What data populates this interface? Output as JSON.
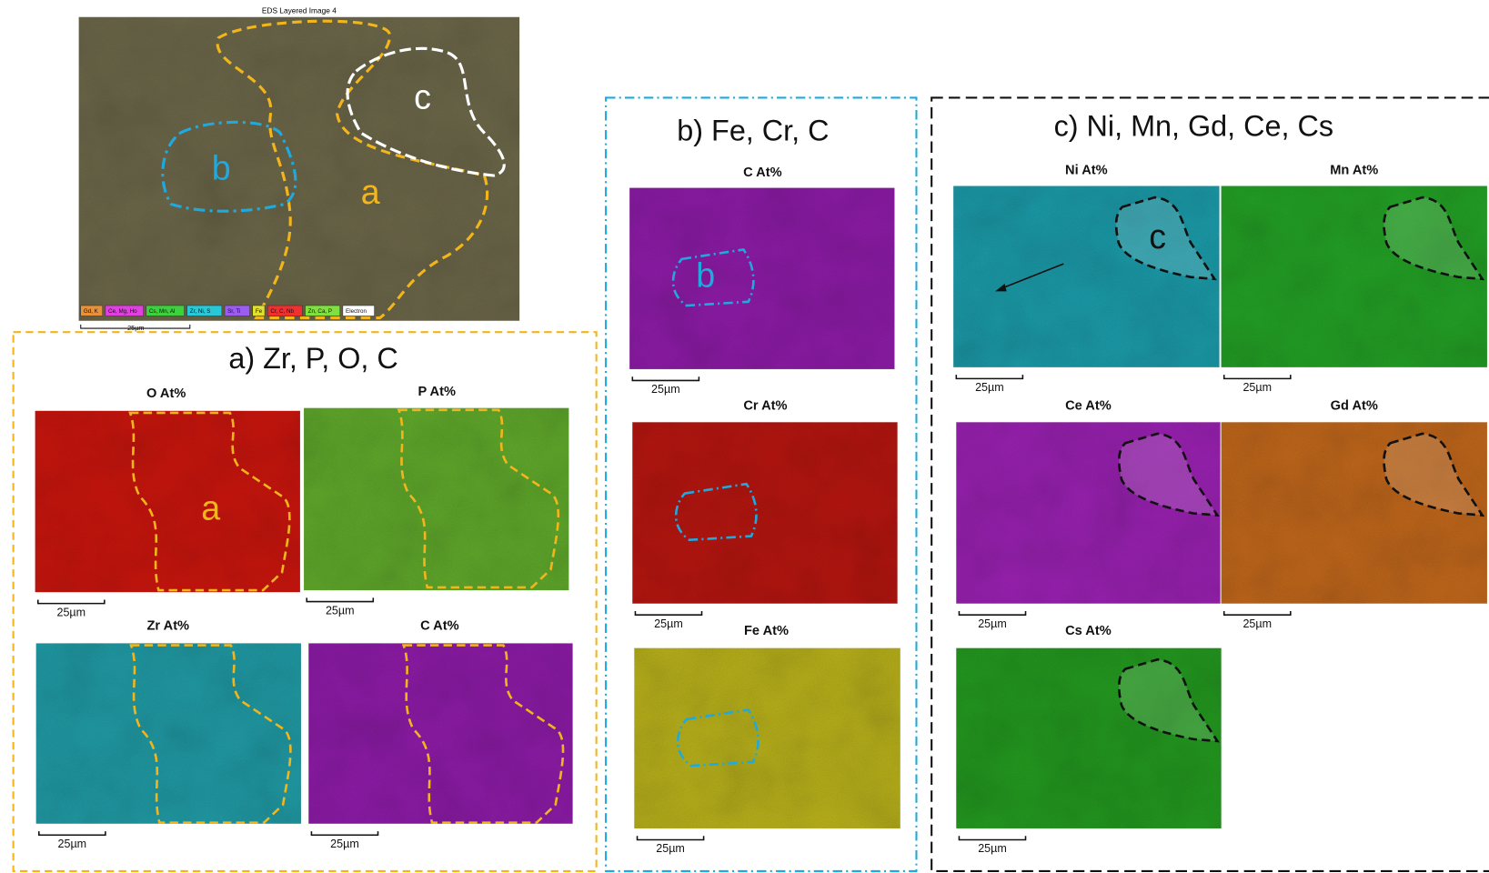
{
  "eds_image": {
    "title": "EDS Layered Image 4",
    "region_labels": [
      "a",
      "b",
      "c"
    ],
    "legend": [
      "Gd, K",
      "Ce, Mg, Ho",
      "Cs, Mn, Al",
      "Zr, Ni, S",
      "Sr, Ti",
      "Fe",
      "Cr, C, Nb",
      "Zn, Ca, P",
      "Electron"
    ],
    "scale_bar": "25µm"
  },
  "panels": [
    {
      "title": "a) Zr, P, O, C",
      "maps": [
        {
          "label": "O At%",
          "scale_bar": "25µm",
          "region_label": "a"
        },
        {
          "label": "P At%",
          "scale_bar": "25µm"
        },
        {
          "label": "Zr At%",
          "scale_bar": "25µm"
        },
        {
          "label": "C At%",
          "scale_bar": "25µm"
        }
      ]
    },
    {
      "title": "b) Fe, Cr, C",
      "maps": [
        {
          "label": "C At%",
          "scale_bar": "25µm",
          "region_label": "b"
        },
        {
          "label": "Cr At%",
          "scale_bar": "25µm"
        },
        {
          "label": "Fe At%",
          "scale_bar": "25µm"
        }
      ]
    },
    {
      "title": "c) Ni, Mn, Gd, Ce, Cs",
      "maps": [
        {
          "label": "Ni At%",
          "scale_bar": "25µm",
          "region_label": "c"
        },
        {
          "label": "Mn At%",
          "scale_bar": "25µm"
        },
        {
          "label": "Ce At%",
          "scale_bar": "25µm"
        },
        {
          "label": "Gd At%",
          "scale_bar": "25µm"
        },
        {
          "label": "Cs At%",
          "scale_bar": "25µm"
        }
      ]
    }
  ]
}
